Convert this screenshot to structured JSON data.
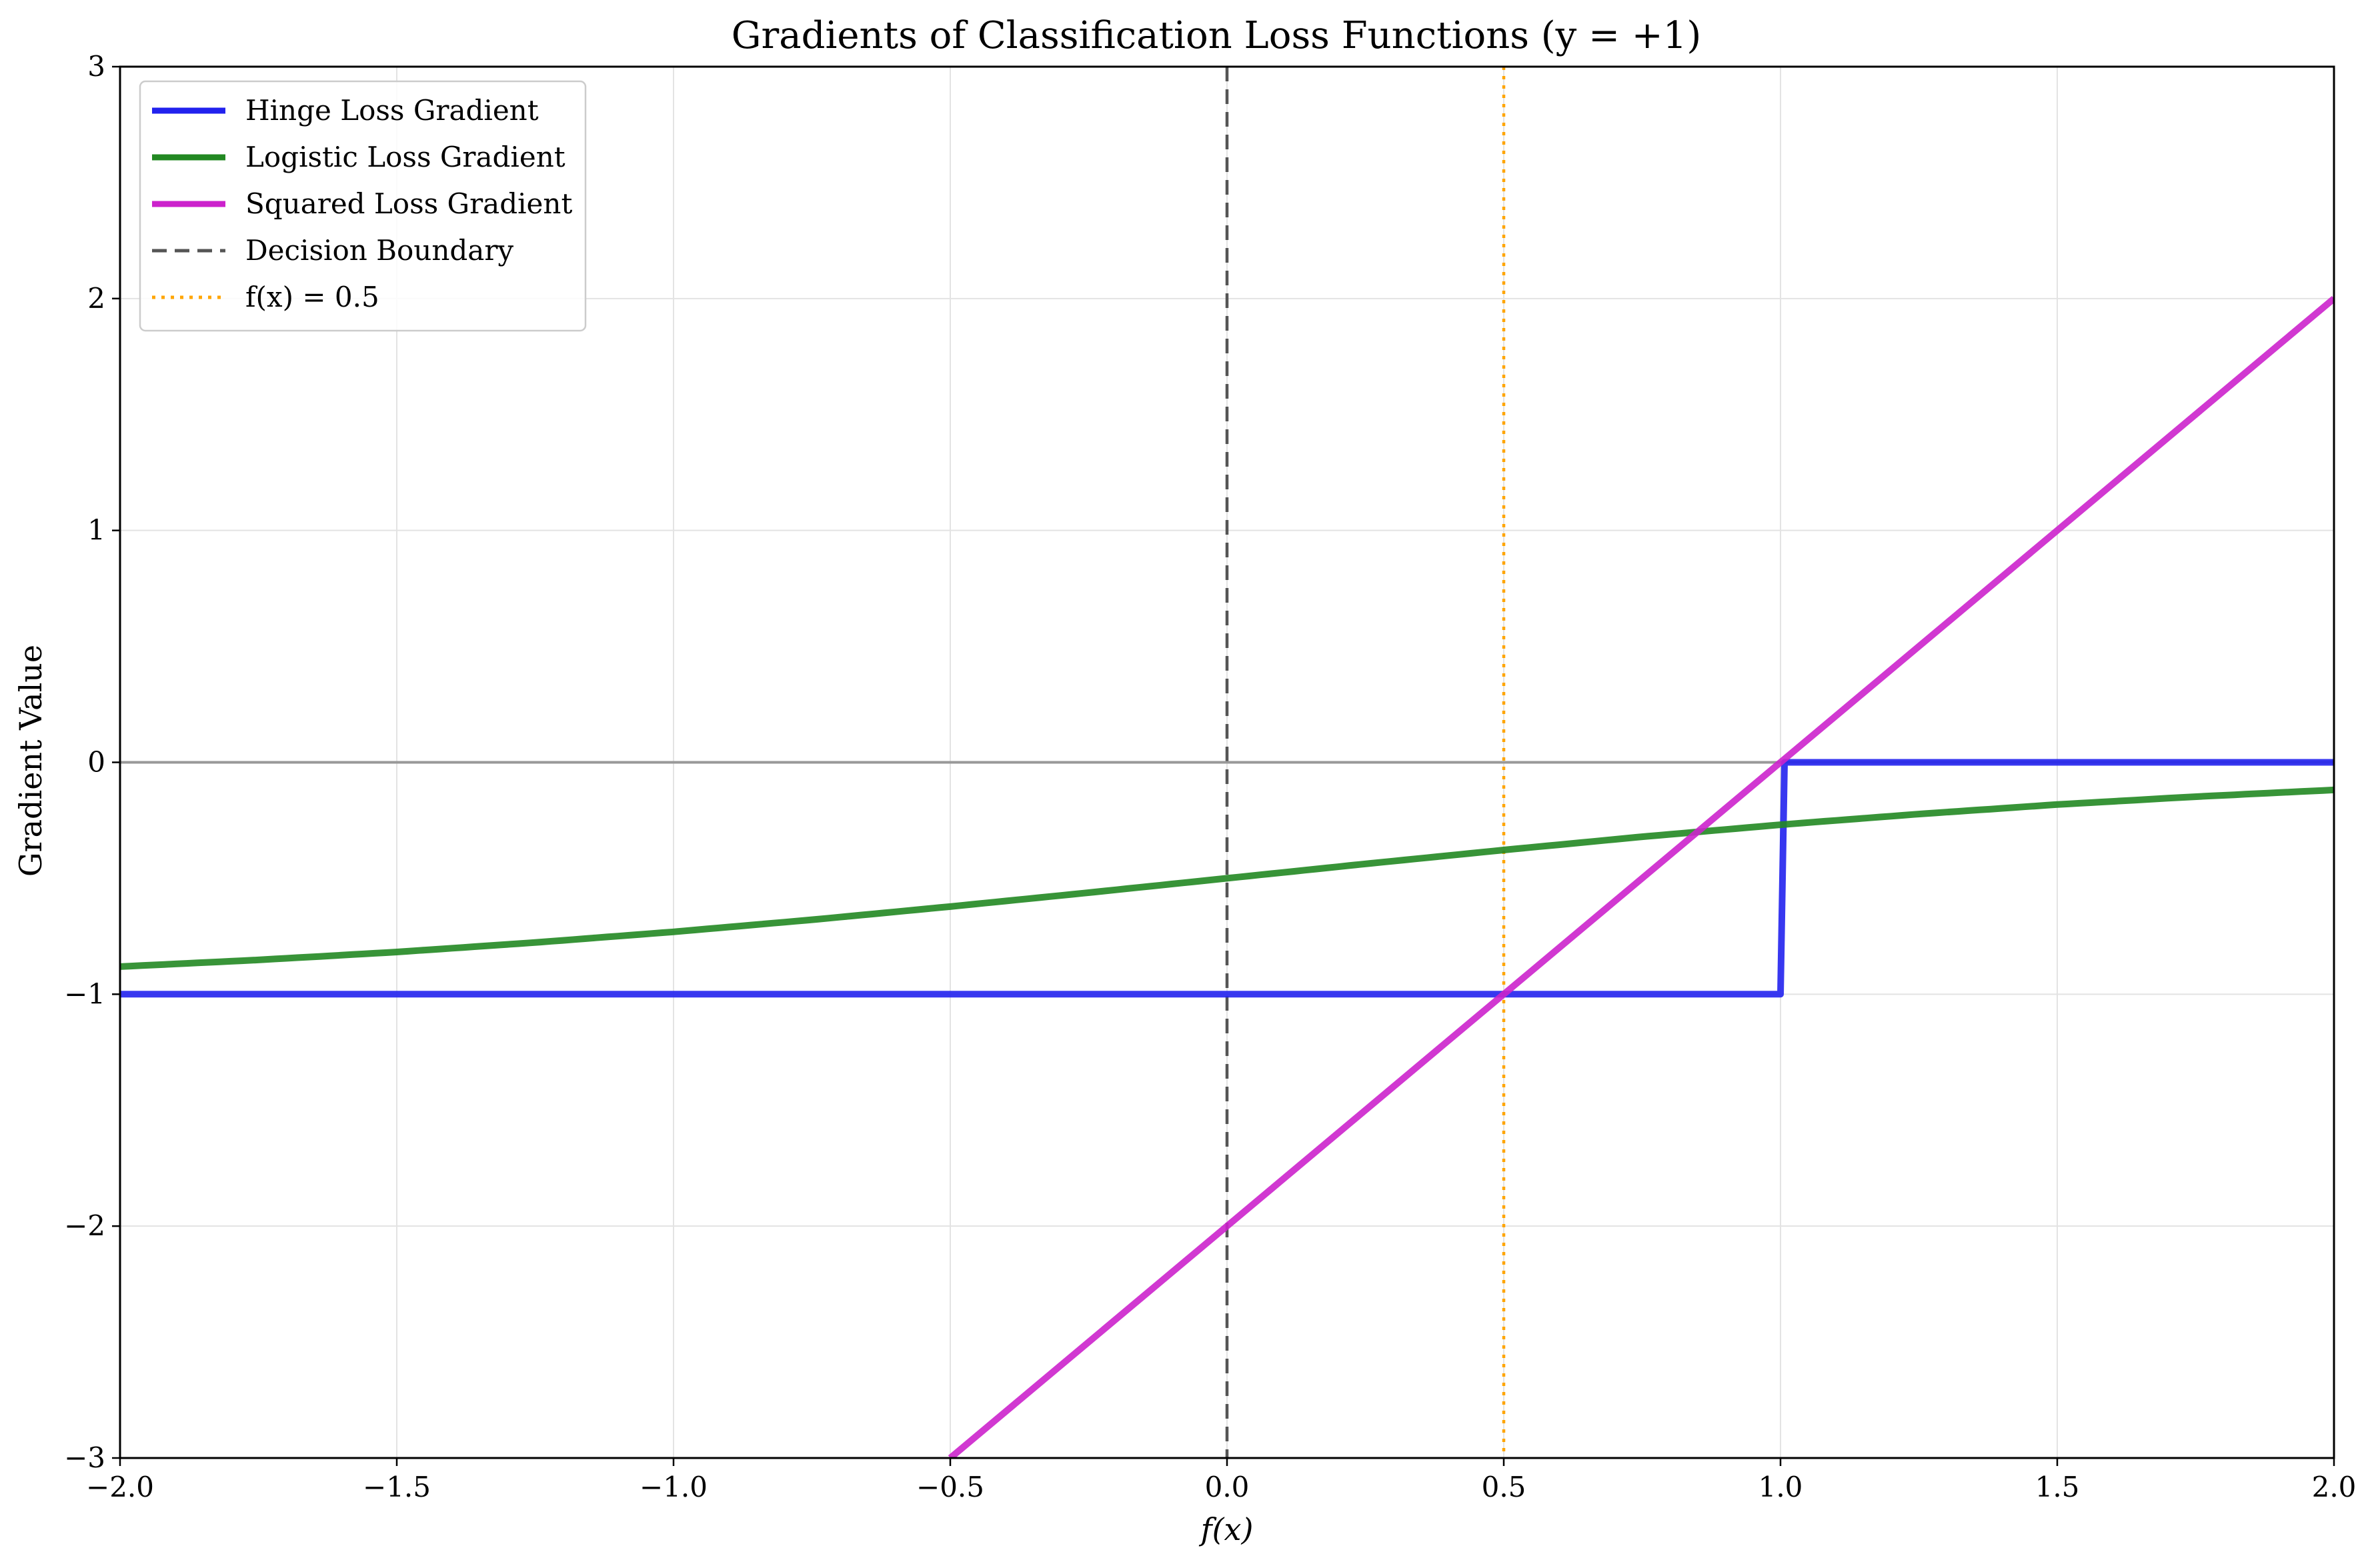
{
  "chart_data": {
    "type": "line",
    "title": "Gradients of Classification Loss Functions (y = +1)",
    "xlabel": "f(x)",
    "ylabel": "Gradient Value",
    "xlim": [
      -2.0,
      2.0
    ],
    "ylim": [
      -3,
      3
    ],
    "x_ticks": [
      "−2.0",
      "−1.5",
      "−1.0",
      "−0.5",
      "0.0",
      "0.5",
      "1.0",
      "1.5",
      "2.0"
    ],
    "y_ticks": [
      "−3",
      "−2",
      "−1",
      "0",
      "1",
      "2",
      "3"
    ],
    "grid": true,
    "legend_position": "upper-left",
    "series": [
      {
        "name": "Hinge Loss Gradient",
        "color": "#2222ee",
        "style": "solid",
        "x": [
          -2.0,
          1.0,
          1.0,
          2.0
        ],
        "y": [
          -1,
          -1,
          0,
          0
        ]
      },
      {
        "name": "Logistic Loss Gradient",
        "color": "#228822",
        "style": "solid",
        "x": [
          -2.0,
          -1.75,
          -1.5,
          -1.25,
          -1.0,
          -0.75,
          -0.5,
          -0.25,
          0.0,
          0.25,
          0.5,
          0.75,
          1.0,
          1.25,
          1.5,
          1.75,
          2.0
        ],
        "y": [
          -0.881,
          -0.852,
          -0.818,
          -0.777,
          -0.731,
          -0.679,
          -0.622,
          -0.562,
          -0.5,
          -0.438,
          -0.378,
          -0.321,
          -0.269,
          -0.223,
          -0.182,
          -0.148,
          -0.119
        ]
      },
      {
        "name": "Squared Loss Gradient",
        "color": "#cc22cc",
        "style": "solid",
        "x": [
          -0.5,
          2.0
        ],
        "y": [
          -3.0,
          2.0
        ]
      }
    ],
    "reference_lines": [
      {
        "name": "Decision Boundary",
        "orientation": "vertical",
        "value": 0.0,
        "color": "#555555",
        "style": "dashed"
      },
      {
        "name": "f(x) = 0.5",
        "orientation": "vertical",
        "value": 0.5,
        "color": "#ffa500",
        "style": "dotted"
      },
      {
        "orientation": "horizontal",
        "value": 0.0,
        "color": "#999999",
        "style": "solid"
      }
    ]
  }
}
